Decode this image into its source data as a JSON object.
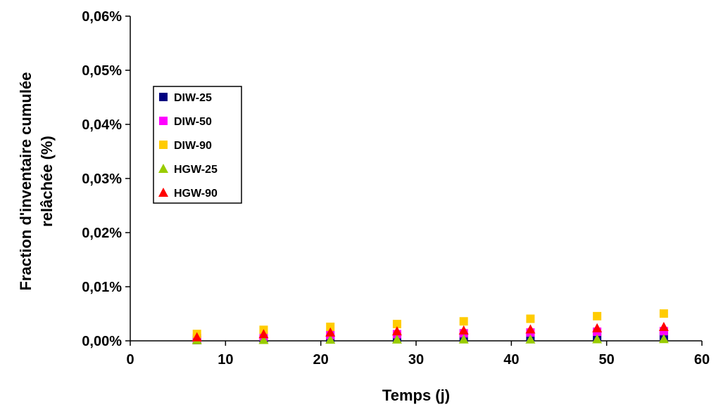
{
  "chart_data": {
    "type": "scatter",
    "title": "",
    "xlabel": "Temps (j)",
    "ylabel": [
      "Fraction d'inventaire cumulée",
      "relâchée (%)"
    ],
    "xlim": [
      0,
      60
    ],
    "ylim": [
      0,
      0.06
    ],
    "x_ticks": [
      0,
      10,
      20,
      30,
      40,
      50,
      60
    ],
    "x_tick_labels": [
      "0",
      "10",
      "20",
      "30",
      "40",
      "50",
      "60"
    ],
    "y_ticks": [
      0,
      0.01,
      0.02,
      0.03,
      0.04,
      0.05,
      0.06
    ],
    "y_tick_labels": [
      "0,00%",
      "0,01%",
      "0,02%",
      "0,03%",
      "0,04%",
      "0,05%",
      "0,06%"
    ],
    "grid": false,
    "legend_position": "left, upper-middle of plot area",
    "x": [
      7,
      14,
      21,
      28,
      35,
      42,
      49,
      56
    ],
    "series": [
      {
        "name": "DIW-25",
        "marker": "square",
        "color": "#000080",
        "values": [
          0.00015,
          0.00023,
          0.00033,
          0.00044,
          0.00058,
          0.00069,
          0.0008,
          0.00092
        ]
      },
      {
        "name": "DIW-50",
        "marker": "square",
        "color": "#FF00FF",
        "values": [
          0.0005,
          0.00082,
          0.00104,
          0.00123,
          0.0014,
          0.00154,
          0.00168,
          0.00179
        ]
      },
      {
        "name": "DIW-90",
        "marker": "square",
        "color": "#FFCC00",
        "values": [
          0.00127,
          0.00203,
          0.00258,
          0.0031,
          0.0036,
          0.00408,
          0.00456,
          0.00504
        ]
      },
      {
        "name": "HGW-25",
        "marker": "triangle",
        "color": "#99CC00",
        "values": [
          0.00017,
          0.00019,
          0.00024,
          0.00027,
          0.0003,
          0.0003,
          0.00033,
          0.00035
        ]
      },
      {
        "name": "HGW-90",
        "marker": "triangle",
        "color": "#FF0000",
        "values": [
          0.0007,
          0.00127,
          0.00157,
          0.00179,
          0.00195,
          0.00214,
          0.00235,
          0.00259
        ]
      }
    ]
  }
}
